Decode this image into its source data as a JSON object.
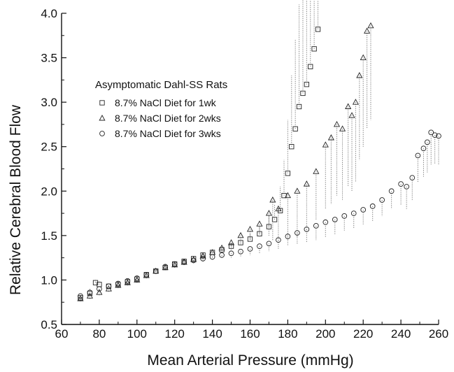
{
  "chart_data": {
    "type": "scatter",
    "title": "",
    "xlabel": "Mean Arterial Pressure (mmHg)",
    "ylabel": "Relative Cerebral Blood Flow",
    "xlim": [
      60,
      260
    ],
    "ylim": [
      0.5,
      4.0
    ],
    "x_ticks": [
      60,
      80,
      100,
      120,
      140,
      160,
      180,
      200,
      220,
      240,
      260
    ],
    "y_ticks": [
      0.5,
      1.0,
      1.5,
      2.0,
      2.5,
      3.0,
      3.5,
      4.0
    ],
    "x_tick_labels": [
      "60",
      "80",
      "100",
      "120",
      "140",
      "160",
      "180",
      "200",
      "220",
      "240",
      "260"
    ],
    "y_tick_labels": [
      "0.5",
      "1.0",
      "1.5",
      "2.0",
      "2.5",
      "3.0",
      "3.5",
      "4.0"
    ],
    "grid": false,
    "legend": {
      "title": "Asymptomatic Dahl-SS Rats",
      "placement": "upper-left"
    },
    "series": [
      {
        "name": "8.7% NaCl Diet for 1wk",
        "marker": "square",
        "x": [
          70,
          75,
          78,
          80,
          85,
          90,
          95,
          100,
          105,
          110,
          115,
          120,
          125,
          130,
          135,
          140,
          145,
          150,
          155,
          160,
          165,
          170,
          173,
          176,
          178,
          180,
          182,
          184,
          186,
          188,
          190,
          192,
          194,
          196
        ],
        "y": [
          0.8,
          0.85,
          0.97,
          0.95,
          0.93,
          0.95,
          0.98,
          1.01,
          1.06,
          1.1,
          1.14,
          1.18,
          1.21,
          1.24,
          1.28,
          1.31,
          1.34,
          1.38,
          1.42,
          1.46,
          1.52,
          1.6,
          1.68,
          1.78,
          1.95,
          2.2,
          2.5,
          2.7,
          2.95,
          3.1,
          3.2,
          3.4,
          3.6,
          3.82
        ],
        "error_upper": [
          0.85,
          0.9,
          1.0,
          0.99,
          0.97,
          0.98,
          1.01,
          1.04,
          1.08,
          1.13,
          1.17,
          1.21,
          1.24,
          1.27,
          1.31,
          1.34,
          1.38,
          1.42,
          1.46,
          1.52,
          1.6,
          1.72,
          1.85,
          2.05,
          2.35,
          2.8,
          3.3,
          3.7,
          4.1,
          4.2,
          4.25,
          4.3,
          4.3,
          4.3
        ]
      },
      {
        "name": "8.7% NaCl Diet for 2wks",
        "marker": "triangle",
        "x": [
          70,
          75,
          80,
          85,
          90,
          95,
          100,
          105,
          110,
          115,
          120,
          125,
          130,
          135,
          140,
          145,
          150,
          155,
          160,
          165,
          170,
          172,
          175,
          180,
          185,
          190,
          195,
          200,
          203,
          206,
          209,
          212,
          214,
          216,
          218,
          220,
          222,
          224
        ],
        "y": [
          0.79,
          0.82,
          0.86,
          0.9,
          0.94,
          0.97,
          1.0,
          1.05,
          1.1,
          1.14,
          1.17,
          1.2,
          1.23,
          1.27,
          1.31,
          1.36,
          1.42,
          1.5,
          1.57,
          1.63,
          1.75,
          1.9,
          1.8,
          1.95,
          2.0,
          2.08,
          2.22,
          2.52,
          2.6,
          2.75,
          2.7,
          2.95,
          2.85,
          3.0,
          3.3,
          3.5,
          3.8,
          3.86
        ],
        "error_lower": [
          0.76,
          0.78,
          0.82,
          0.86,
          0.9,
          0.93,
          0.96,
          1.01,
          1.06,
          1.1,
          1.13,
          1.16,
          1.19,
          1.22,
          1.26,
          1.3,
          1.34,
          1.4,
          1.45,
          1.48,
          1.5,
          1.45,
          1.42,
          1.45,
          1.48,
          1.55,
          1.68,
          1.8,
          1.85,
          1.95,
          1.9,
          2.05,
          2.0,
          2.1,
          2.35,
          2.5,
          2.7,
          2.8
        ]
      },
      {
        "name": "8.7% NaCl Diet for 3wks",
        "marker": "circle",
        "x": [
          70,
          75,
          80,
          85,
          90,
          95,
          100,
          105,
          110,
          115,
          120,
          125,
          130,
          135,
          140,
          145,
          150,
          155,
          160,
          165,
          170,
          175,
          180,
          185,
          190,
          195,
          200,
          205,
          210,
          215,
          220,
          225,
          230,
          235,
          240,
          243,
          246,
          249,
          252,
          254,
          256,
          258,
          260
        ],
        "y": [
          0.82,
          0.86,
          0.9,
          0.93,
          0.96,
          0.99,
          1.02,
          1.06,
          1.1,
          1.15,
          1.18,
          1.2,
          1.22,
          1.24,
          1.26,
          1.28,
          1.3,
          1.32,
          1.35,
          1.38,
          1.41,
          1.45,
          1.49,
          1.53,
          1.57,
          1.61,
          1.65,
          1.68,
          1.72,
          1.75,
          1.79,
          1.83,
          1.9,
          2.0,
          2.08,
          2.05,
          2.15,
          2.4,
          2.48,
          2.55,
          2.66,
          2.63,
          2.62
        ],
        "error_lower": [
          0.78,
          0.82,
          0.86,
          0.89,
          0.92,
          0.95,
          0.98,
          1.02,
          1.06,
          1.11,
          1.14,
          1.16,
          1.18,
          1.2,
          1.22,
          1.24,
          1.25,
          1.26,
          1.28,
          1.3,
          1.32,
          1.35,
          1.38,
          1.4,
          1.42,
          1.45,
          1.48,
          1.51,
          1.55,
          1.58,
          1.62,
          1.66,
          1.72,
          1.8,
          1.85,
          1.8,
          1.9,
          2.1,
          2.15,
          2.2,
          2.3,
          2.3,
          2.3
        ]
      }
    ]
  }
}
